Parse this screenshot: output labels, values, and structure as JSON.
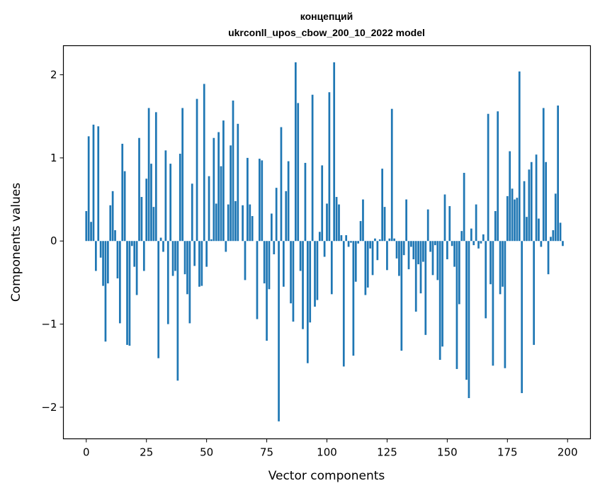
{
  "chart_data": {
    "type": "bar",
    "title": [
      "концепций",
      "ukrconll_upos_cbow_200_10_2022 model"
    ],
    "xlabel": "Vector components",
    "ylabel": "Components values",
    "xlim": [
      -9.5,
      209.5
    ],
    "ylim": [
      -2.38,
      2.35
    ],
    "xticks": [
      0,
      25,
      50,
      75,
      100,
      125,
      150,
      175,
      200
    ],
    "yticks": [
      -2,
      -1,
      0,
      1,
      2
    ],
    "ytick_labels": [
      "−2",
      "−1",
      "0",
      "1",
      "2"
    ],
    "color": "#1f77b4",
    "values": [
      0.36,
      1.26,
      0.23,
      1.4,
      -0.36,
      1.38,
      -0.2,
      -0.54,
      -1.21,
      -0.51,
      0.43,
      0.6,
      0.13,
      -0.45,
      -0.99,
      1.17,
      0.84,
      -1.25,
      -1.26,
      -0.06,
      -0.31,
      -0.65,
      1.24,
      0.53,
      -0.36,
      0.75,
      1.6,
      0.93,
      0.41,
      1.55,
      -1.41,
      0.04,
      -0.13,
      1.09,
      -1.0,
      0.93,
      -0.42,
      -0.36,
      -1.68,
      1.05,
      1.6,
      -0.4,
      -0.64,
      -0.99,
      0.69,
      -0.3,
      1.71,
      -0.55,
      -0.54,
      1.89,
      -0.31,
      0.78,
      0.02,
      1.24,
      0.45,
      1.31,
      0.9,
      1.45,
      -0.13,
      0.44,
      1.15,
      1.69,
      0.48,
      1.41,
      0.0,
      0.43,
      -0.47,
      1.0,
      0.44,
      0.3,
      0.0,
      -0.94,
      0.99,
      0.97,
      -0.51,
      -1.2,
      -0.58,
      0.33,
      -0.16,
      0.64,
      -2.17,
      1.37,
      -0.55,
      0.6,
      0.96,
      -0.75,
      -0.97,
      2.15,
      1.66,
      -0.36,
      -1.06,
      0.94,
      -1.47,
      -0.98,
      1.76,
      -0.79,
      -0.71,
      0.11,
      0.91,
      -0.19,
      0.45,
      1.79,
      -0.64,
      2.15,
      0.53,
      0.44,
      0.07,
      -1.51,
      0.07,
      -0.07,
      -0.02,
      -1.38,
      -0.49,
      -0.03,
      0.24,
      0.5,
      -0.65,
      -0.56,
      -0.09,
      -0.41,
      0.03,
      -0.23,
      0.02,
      0.87,
      0.41,
      -0.35,
      0.03,
      1.59,
      0.03,
      -0.21,
      -0.42,
      -1.32,
      -0.17,
      0.5,
      -0.34,
      -0.07,
      -0.22,
      -0.85,
      -0.28,
      -0.63,
      -0.25,
      -1.13,
      0.38,
      -0.13,
      -0.41,
      -0.05,
      -0.47,
      -1.43,
      -1.27,
      0.56,
      -0.22,
      0.42,
      -0.06,
      -0.31,
      -1.54,
      -0.76,
      0.12,
      0.82,
      -1.67,
      -1.89,
      0.15,
      -0.05,
      0.44,
      -0.09,
      -0.03,
      0.08,
      -0.93,
      1.53,
      -0.52,
      -1.5,
      0.36,
      1.56,
      -0.64,
      -0.55,
      -1.53,
      0.54,
      1.08,
      0.63,
      0.5,
      0.52,
      2.04,
      -1.83,
      0.72,
      0.29,
      0.86,
      0.95,
      -1.25,
      1.04,
      0.27,
      -0.07,
      1.6,
      0.95,
      -0.4,
      0.05,
      0.13,
      0.57,
      1.63,
      0.22,
      -0.06
    ]
  }
}
